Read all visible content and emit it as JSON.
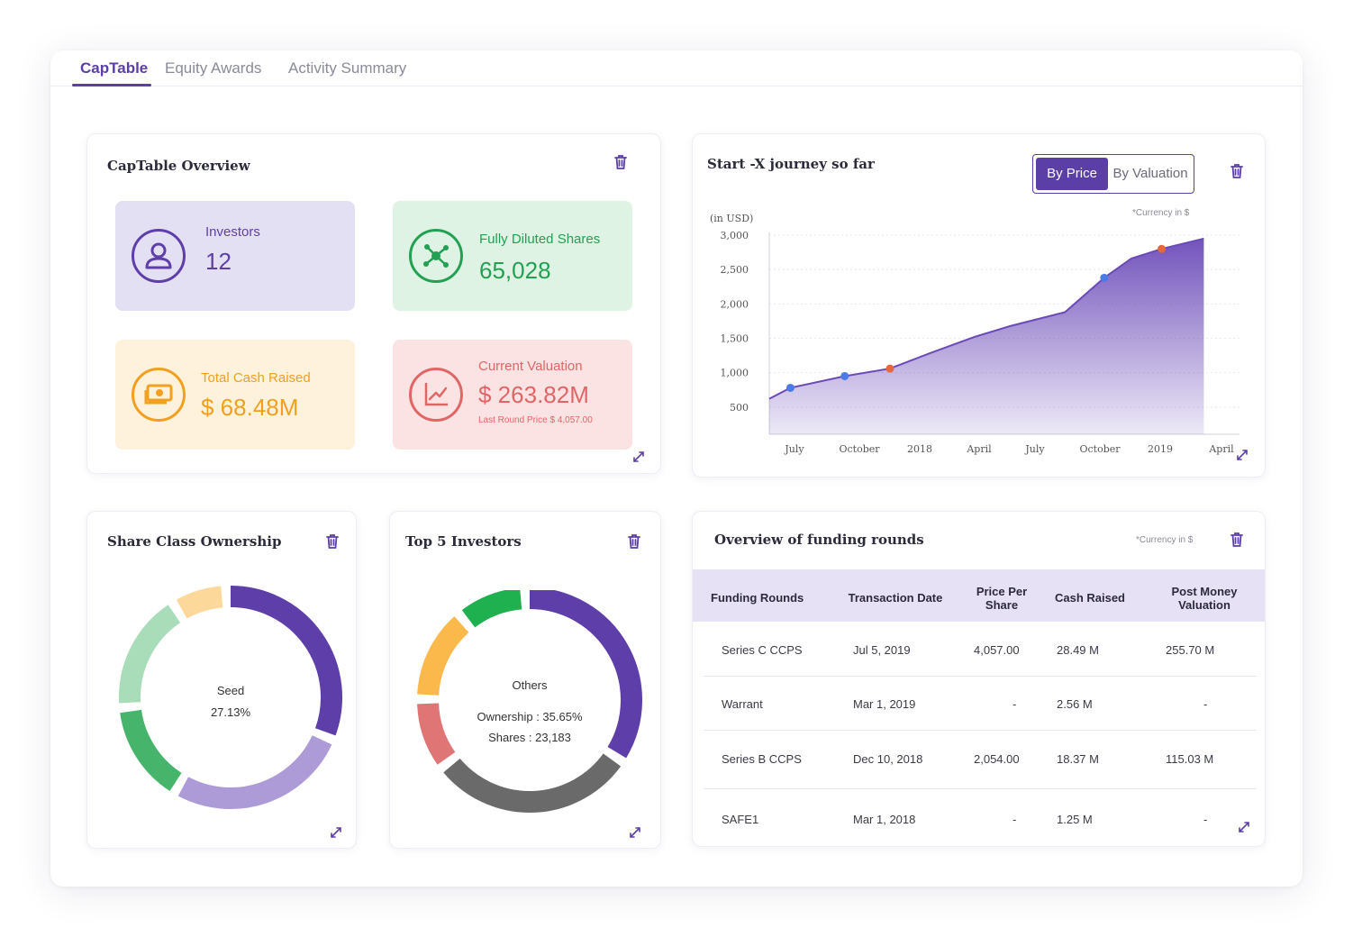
{
  "tabs": [
    "CapTable",
    "Equity Awards",
    "Activity Summary"
  ],
  "overview": {
    "title": "CapTable Overview",
    "investors": {
      "label": "Investors",
      "value": "12"
    },
    "diluted": {
      "label": "Fully Diluted Shares",
      "value": "65,028"
    },
    "cash": {
      "label": "Total Cash Raised",
      "value": "$ 68.48M"
    },
    "valuation": {
      "label": "Current Valuation",
      "value": "$ 263.82M",
      "sub": "Last Round Price $ 4,057.00"
    }
  },
  "journey": {
    "title": "Start -X  journey so far",
    "toggle": {
      "on": "By Price",
      "off": "By Valuation"
    },
    "currency_note": "*Currency in $",
    "unit_label": "(in USD)"
  },
  "chart_data": {
    "type": "area",
    "title": "Start -X  journey so far",
    "ylabel": "(in USD)",
    "ylim": [
      0,
      3000
    ],
    "yticks": [
      "3,000",
      "2,500",
      "2,000",
      "1,500",
      "1,000",
      "500"
    ],
    "xtick_labels": [
      "July",
      "October",
      "2018",
      "April",
      "July",
      "October",
      "2019",
      "April"
    ],
    "x": [
      0,
      0.35,
      1.25,
      2.0,
      2.65,
      3.4,
      4.0,
      4.9,
      5.55,
      6.0,
      6.5,
      7.2
    ],
    "values": [
      620,
      780,
      950,
      1060,
      1280,
      1520,
      1680,
      1880,
      2380,
      2660,
      2800,
      2950
    ],
    "markers": [
      {
        "x": 0.35,
        "y": 780,
        "color": "#4b7be5"
      },
      {
        "x": 1.25,
        "y": 950,
        "color": "#4b7be5"
      },
      {
        "x": 2.0,
        "y": 1060,
        "color": "#e5683c"
      },
      {
        "x": 5.55,
        "y": 2380,
        "color": "#4b7be5"
      },
      {
        "x": 6.5,
        "y": 2800,
        "color": "#e5683c"
      }
    ],
    "area_color": "#6b4ab8"
  },
  "share_class": {
    "title": "Share Class Ownership",
    "center_label": "Seed",
    "center_value": "27.13%",
    "segments": [
      {
        "name": "purple",
        "color": "#5e3ea8",
        "start": 0,
        "end": 110
      },
      {
        "name": "lavender",
        "color": "#ad9bd8",
        "start": 115,
        "end": 208
      },
      {
        "name": "green",
        "color": "#46b46a",
        "start": 213,
        "end": 262
      },
      {
        "name": "light-green",
        "color": "#a9dcb9",
        "start": 267,
        "end": 326
      },
      {
        "name": "light-orange",
        "color": "#fcd89a",
        "start": 331,
        "end": 355
      }
    ]
  },
  "top_investors": {
    "title": "Top 5 Investors",
    "center_label": "Others",
    "center_line2": "Ownership : 35.65%",
    "center_line3": "Shares : 23,183",
    "segments": [
      {
        "name": "purple",
        "color": "#5e3ea8",
        "start": 0,
        "end": 121
      },
      {
        "name": "dark-gray",
        "color": "#6a6a6a",
        "start": 126,
        "end": 230
      },
      {
        "name": "red",
        "color": "#e07575",
        "start": 235,
        "end": 268
      },
      {
        "name": "orange",
        "color": "#fbb94b",
        "start": 273,
        "end": 318
      },
      {
        "name": "green",
        "color": "#1fb04f",
        "start": 323,
        "end": 355
      }
    ]
  },
  "funding": {
    "title": "Overview of funding rounds",
    "currency_note": "*Currency in $",
    "columns": [
      "Funding Rounds",
      "Transaction Date",
      "Price Per Share",
      "Cash Raised",
      "Post Money Valuation"
    ],
    "rows": [
      [
        "Series C CCPS",
        "Jul 5, 2019",
        "4,057.00",
        "28.49 M",
        "255.70 M"
      ],
      [
        "Warrant",
        "Mar 1, 2019",
        "-",
        "2.56 M",
        "-"
      ],
      [
        "Series B CCPS",
        "Dec 10, 2018",
        "2,054.00",
        "18.37 M",
        "115.03 M"
      ],
      [
        "SAFE1",
        "Mar 1, 2018",
        "-",
        "1.25 M",
        "-"
      ]
    ]
  },
  "colors": {
    "accent": "#5b3ea6"
  }
}
